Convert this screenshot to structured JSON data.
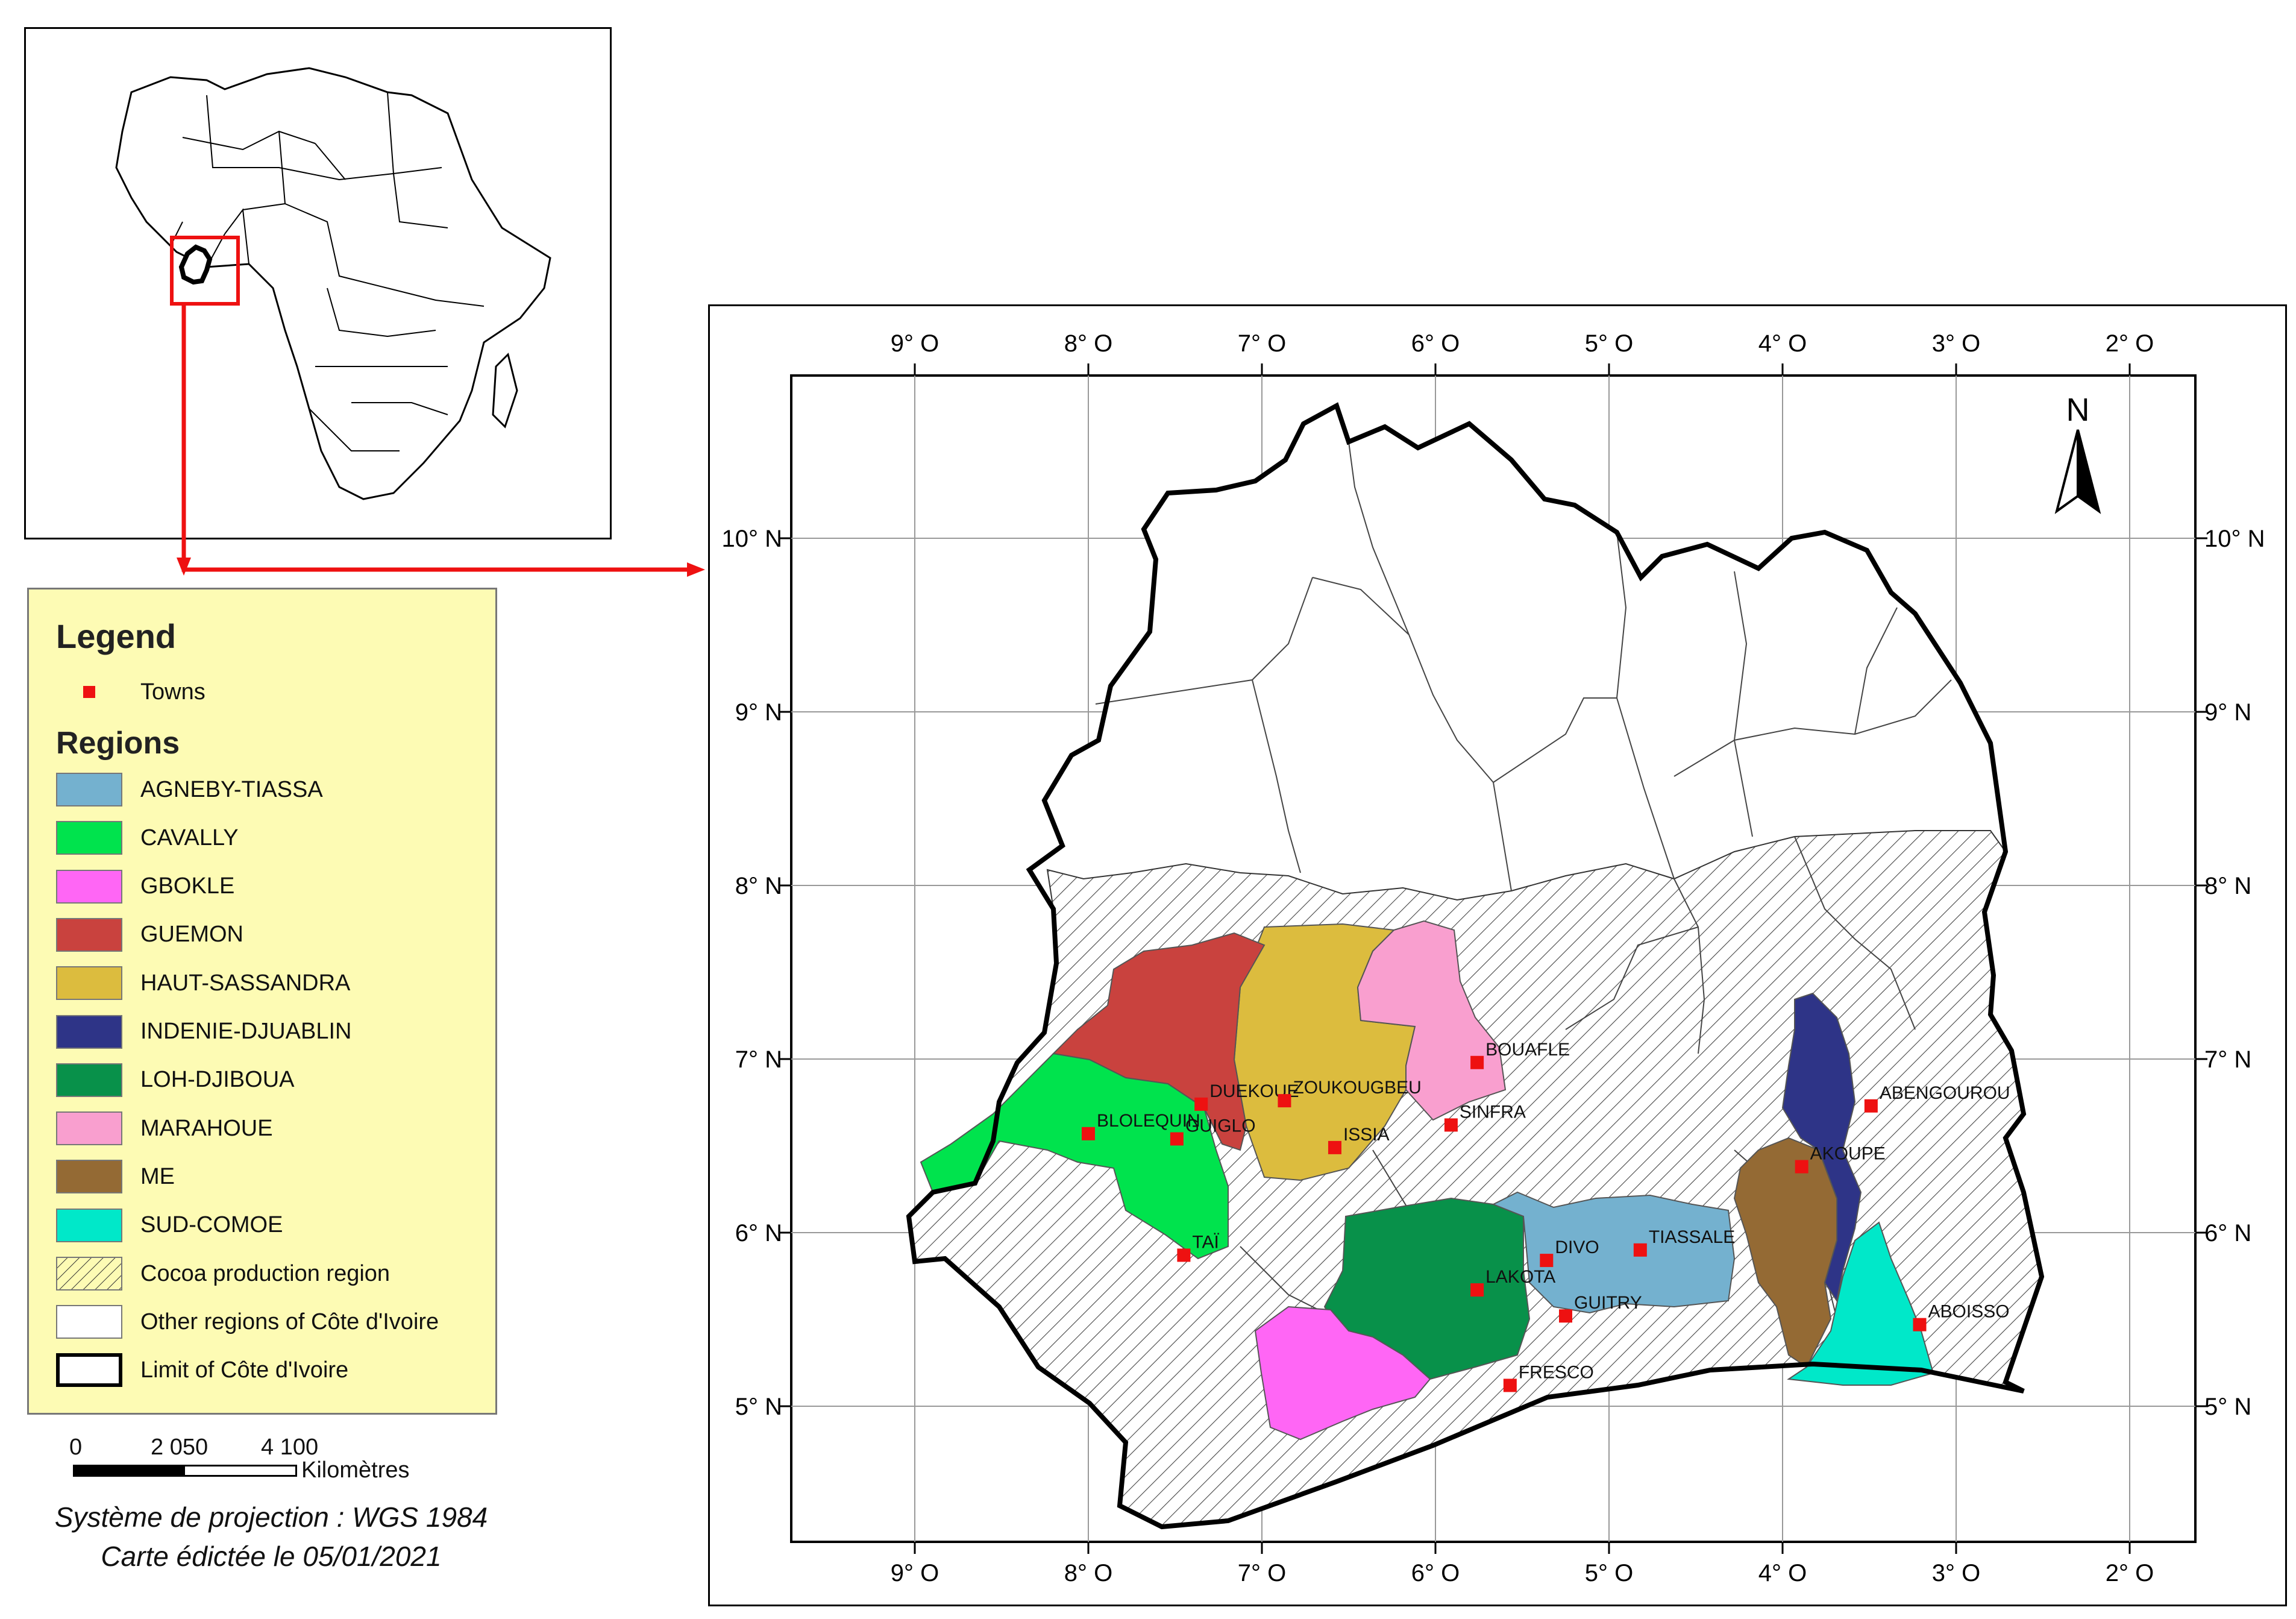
{
  "legend": {
    "title": "Legend",
    "towns_label": "Towns",
    "regions_title": "Regions",
    "regions": [
      {
        "name": "AGNEBY-TIASSA",
        "color": "#74b1cf"
      },
      {
        "name": "CAVALLY",
        "color": "#00e34d"
      },
      {
        "name": "GBOKLE",
        "color": "#ff66f5"
      },
      {
        "name": "GUEMON",
        "color": "#c9423e"
      },
      {
        "name": "HAUT-SASSANDRA",
        "color": "#dcbc3e"
      },
      {
        "name": "INDENIE-DJUABLIN",
        "color": "#2e3487"
      },
      {
        "name": "LOH-DJIBOUA",
        "color": "#08914a"
      },
      {
        "name": "MARAHOUE",
        "color": "#f99fcf"
      },
      {
        "name": "ME",
        "color": "#946a34"
      },
      {
        "name": "SUD-COMOE",
        "color": "#00e8c9"
      }
    ],
    "cocoa_label": "Cocoa production region",
    "other_label": "Other regions of Côte d'Ivoire",
    "limit_label": "Limit of Côte d'Ivoire"
  },
  "scale": {
    "ticks": [
      "0",
      "2 050",
      "4 100"
    ],
    "unit": "Kilomètres"
  },
  "notes": {
    "projection": "Système de projection : WGS 1984",
    "date": "Carte édictée le 05/01/2021"
  },
  "map": {
    "lon_labels": [
      "9° O",
      "8° O",
      "7° O",
      "6° O",
      "5° O",
      "4° O",
      "3° O",
      "2° O"
    ],
    "lat_labels": [
      "10° N",
      "9° N",
      "8° N",
      "7° N",
      "6° N",
      "5° N"
    ],
    "north_label": "N",
    "town_color": "#ee1111",
    "towns": [
      {
        "name": "BOUAFLE",
        "lon": -5.76,
        "lat": 6.98
      },
      {
        "name": "DUEKOUE",
        "lon": -7.35,
        "lat": 6.74
      },
      {
        "name": "ZOUKOUGBEU",
        "lon": -6.87,
        "lat": 6.76
      },
      {
        "name": "ISSIA",
        "lon": -6.58,
        "lat": 6.49
      },
      {
        "name": "SINFRA",
        "lon": -5.91,
        "lat": 6.62
      },
      {
        "name": "BLOLEQUIN",
        "lon": -8.0,
        "lat": 6.57
      },
      {
        "name": "GUIGLO",
        "lon": -7.49,
        "lat": 6.54
      },
      {
        "name": "TAÏ",
        "lon": -7.45,
        "lat": 5.87
      },
      {
        "name": "ABENGOUROU",
        "lon": -3.49,
        "lat": 6.73
      },
      {
        "name": "AKOUPE",
        "lon": -3.89,
        "lat": 6.38
      },
      {
        "name": "DIVO",
        "lon": -5.36,
        "lat": 5.84
      },
      {
        "name": "TIASSALE",
        "lon": -4.82,
        "lat": 5.9
      },
      {
        "name": "LAKOTA",
        "lon": -5.76,
        "lat": 5.67
      },
      {
        "name": "GUITRY",
        "lon": -5.25,
        "lat": 5.52
      },
      {
        "name": "ABOISSO",
        "lon": -3.21,
        "lat": 5.47
      },
      {
        "name": "FRESCO",
        "lon": -5.57,
        "lat": 5.12
      }
    ]
  }
}
